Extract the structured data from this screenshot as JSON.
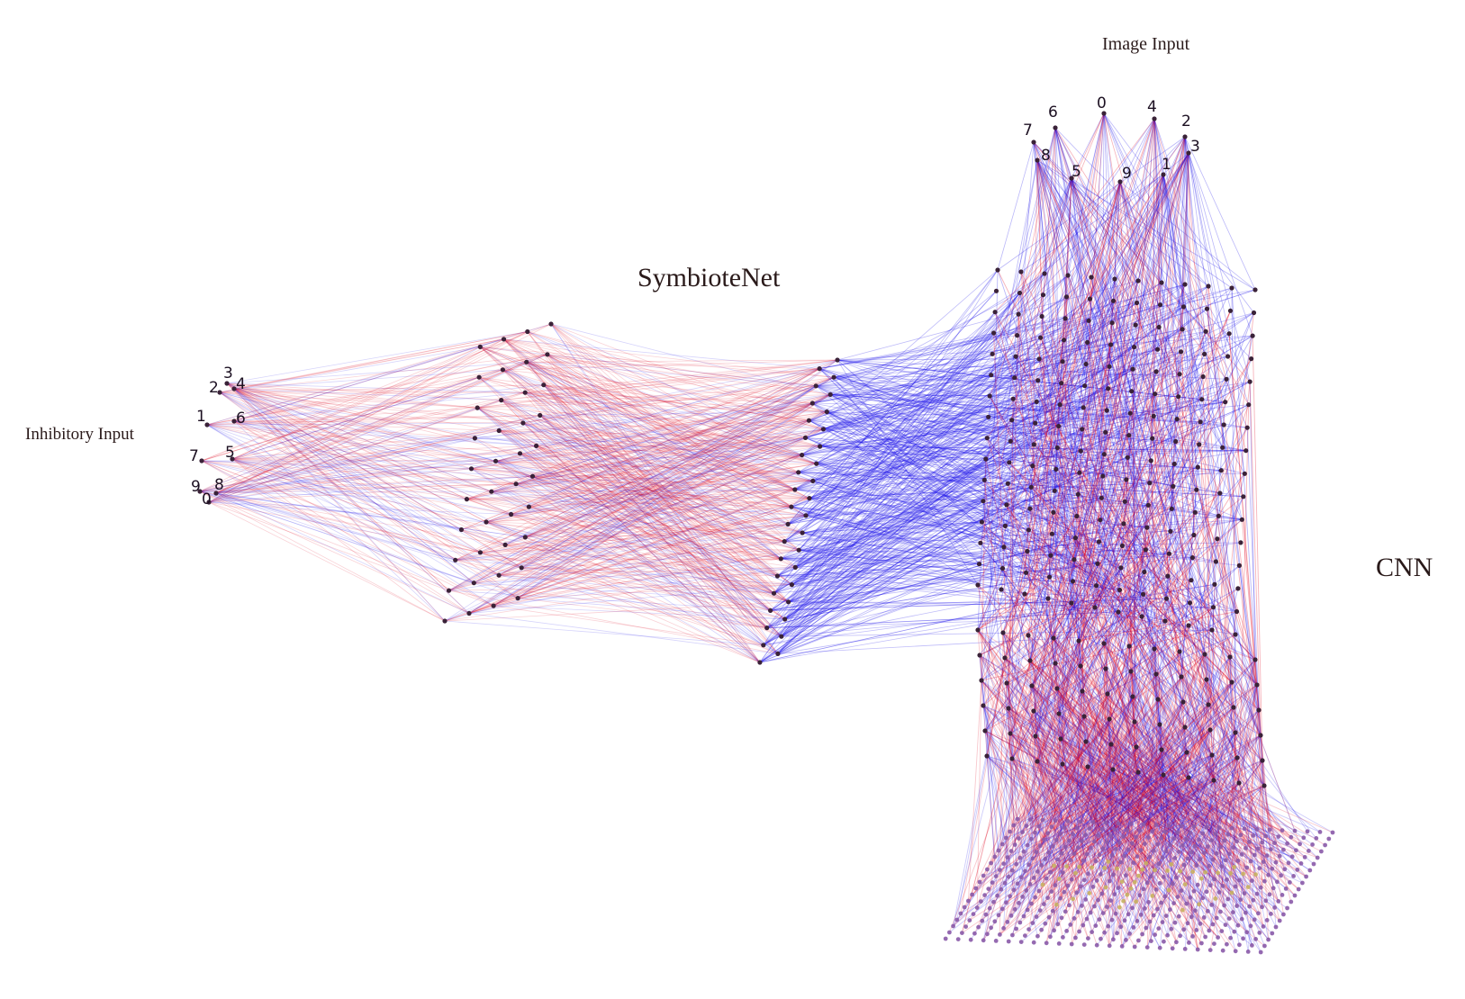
{
  "labels": {
    "symbiote_net": "SymbioteNet",
    "cnn": "CNN",
    "image_input": "Image Input",
    "inhibitory_input": "Inhibitory Input"
  },
  "image_input_digits": [
    "7",
    "6",
    "0",
    "4",
    "2",
    "8",
    "5",
    "9",
    "1",
    "3"
  ],
  "inhibitory_input_digits": [
    "3",
    "2",
    "4",
    "1",
    "6",
    "7",
    "5",
    "9",
    "8",
    "0"
  ],
  "colors": {
    "excitatory_edge": "#e0001b",
    "inhibitory_edge": "#1a10e8",
    "node": "#3a2238",
    "input_grid_node": "#8a5aa8",
    "input_grid_highlight": "#c8b060"
  }
}
